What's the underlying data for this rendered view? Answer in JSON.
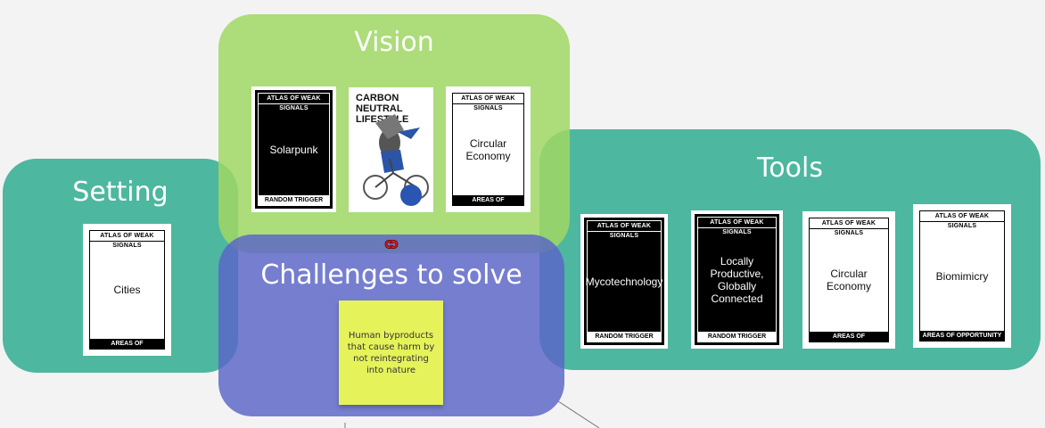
{
  "zones": {
    "setting": "Setting",
    "vision": "Vision",
    "tools": "Tools",
    "challenges": "Challenges to solve"
  },
  "card_labels": {
    "header": "ATLAS OF WEAK SIGNALS",
    "areas": "AREAS OF OPPORTUNITY",
    "random": "RANDOM TRIGGER"
  },
  "cards": {
    "cities": "Cities",
    "solarpunk": "Solarpunk",
    "carbon_neutral": "CARBON NEUTRAL LIFESTYLE",
    "circular_vision": "Circular Economy",
    "mycotechnology": "Mycotechnology",
    "locally_productive": "Locally Productive, Globally Connected",
    "circular_tools": "Circular Economy",
    "biomimicry": "Biomimicry"
  },
  "sticky_note": "Human byproducts that cause harm by not reintegrating into nature",
  "colors": {
    "teal_zone": "#28aa8c",
    "green_zone": "#a0d764",
    "purple_zone": "#5a64c8",
    "sticky": "#e6f25a",
    "connector": "#e02020"
  },
  "icons": [
    "link-connector-icon",
    "bicycle-illustration"
  ]
}
